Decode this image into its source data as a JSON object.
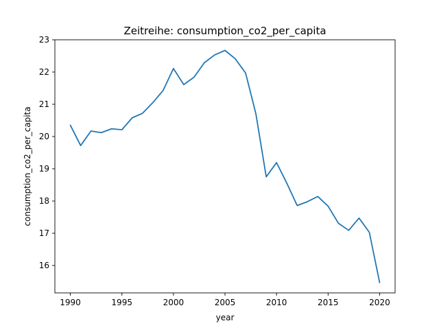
{
  "chart_data": {
    "type": "line",
    "title": "Zeitreihe: consumption_co2_per_capita",
    "xlabel": "year",
    "ylabel": "consumption_co2_per_capita",
    "xlim": [
      1988.5,
      2021.5
    ],
    "ylim": [
      15.15,
      23.0
    ],
    "x_ticks": [
      1990,
      1995,
      2000,
      2005,
      2010,
      2015,
      2020
    ],
    "x_tick_labels": [
      "1990",
      "1995",
      "2000",
      "2005",
      "2010",
      "2015",
      "2020"
    ],
    "y_ticks": [
      16,
      17,
      18,
      19,
      20,
      21,
      22,
      23
    ],
    "y_tick_labels": [
      "16",
      "17",
      "18",
      "19",
      "20",
      "21",
      "22",
      "23"
    ],
    "grid": false,
    "line_color": "#1f77b4",
    "series": [
      {
        "x": [
          1990,
          1991,
          1992,
          1993,
          1994,
          1995,
          1996,
          1997,
          1998,
          1999,
          2000,
          2001,
          2002,
          2003,
          2004,
          2005,
          2006,
          2007,
          2008,
          2009,
          2010,
          2011,
          2012,
          2013,
          2014,
          2015,
          2016,
          2017,
          2018,
          2019,
          2020
        ],
        "values": [
          20.35,
          19.72,
          20.17,
          20.12,
          20.24,
          20.21,
          20.58,
          20.72,
          21.05,
          21.43,
          22.11,
          21.61,
          21.84,
          22.29,
          22.53,
          22.67,
          22.41,
          21.97,
          20.7,
          18.75,
          19.19,
          18.55,
          17.86,
          17.98,
          18.14,
          17.84,
          17.31,
          17.09,
          17.47,
          17.03,
          15.47
        ]
      }
    ]
  }
}
